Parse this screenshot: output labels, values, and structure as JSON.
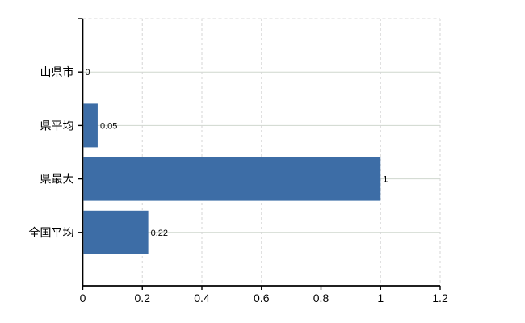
{
  "chart_data": {
    "type": "bar",
    "orientation": "horizontal",
    "title": "",
    "xlabel": "",
    "ylabel": "",
    "categories": [
      "山県市",
      "県平均",
      "県最大",
      "全国平均"
    ],
    "values": [
      0,
      0.05,
      1,
      0.22
    ],
    "value_labels": [
      "0",
      "0.05",
      "1",
      "0.22"
    ],
    "xlim": [
      0,
      1.2
    ],
    "x_ticks": [
      0,
      0.2,
      0.4,
      0.6,
      0.8,
      1,
      1.2
    ],
    "x_tick_labels": [
      "0",
      "0.2",
      "0.4",
      "0.6",
      "0.8",
      "1",
      "1.2"
    ],
    "legend": null,
    "grid": {
      "horizontal_style": "solid",
      "vertical_style": "dashed"
    },
    "colors": {
      "bar": "#3D6DA6",
      "grid_horizontal": "#CFD7CE",
      "grid_vertical": "#D5D5D5",
      "plot_border": "#D8D8D8",
      "axis": "#000000",
      "text": "#000000",
      "background": "#FFFFFF"
    }
  }
}
